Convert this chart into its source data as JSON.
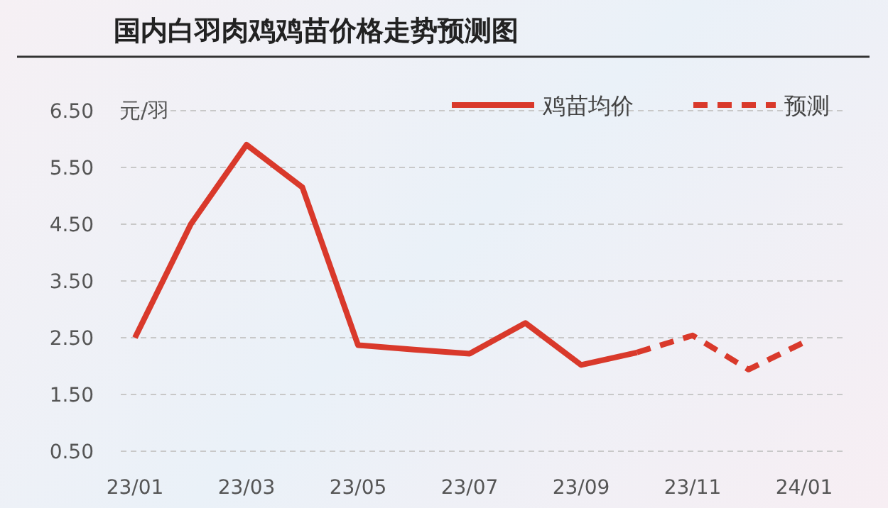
{
  "chart_data": {
    "type": "line",
    "title": "国内白羽肉鸡鸡苗价格走势预测图",
    "ylabel": "元/羽",
    "categories": [
      "23/01",
      null,
      "23/03",
      null,
      "23/05",
      null,
      "23/07",
      null,
      "23/09",
      null,
      "23/11",
      null,
      "24/01"
    ],
    "ylim": [
      0.5,
      6.5
    ],
    "yticks": [
      {
        "value": 0.5,
        "label": "0.50"
      },
      {
        "value": 1.5,
        "label": "1.50"
      },
      {
        "value": 2.5,
        "label": "2.50"
      },
      {
        "value": 3.5,
        "label": "3.50"
      },
      {
        "value": 4.5,
        "label": "4.50"
      },
      {
        "value": 5.5,
        "label": "5.50"
      },
      {
        "value": 6.5,
        "label": "6.50"
      }
    ],
    "grid": "y",
    "legend": "top right",
    "marker": "none",
    "series": [
      {
        "name": "鸡苗均价",
        "color": "#d9392b",
        "line_style": "solid",
        "values": [
          2.5,
          4.5,
          5.9,
          5.15,
          2.37,
          2.29,
          2.22,
          2.76,
          2.02,
          2.24,
          null,
          null,
          null
        ]
      },
      {
        "name": "预测",
        "color": "#d9392b",
        "line_style": "dashed",
        "values": [
          null,
          null,
          null,
          null,
          null,
          null,
          null,
          null,
          null,
          2.24,
          2.54,
          1.94,
          2.42
        ]
      }
    ]
  }
}
